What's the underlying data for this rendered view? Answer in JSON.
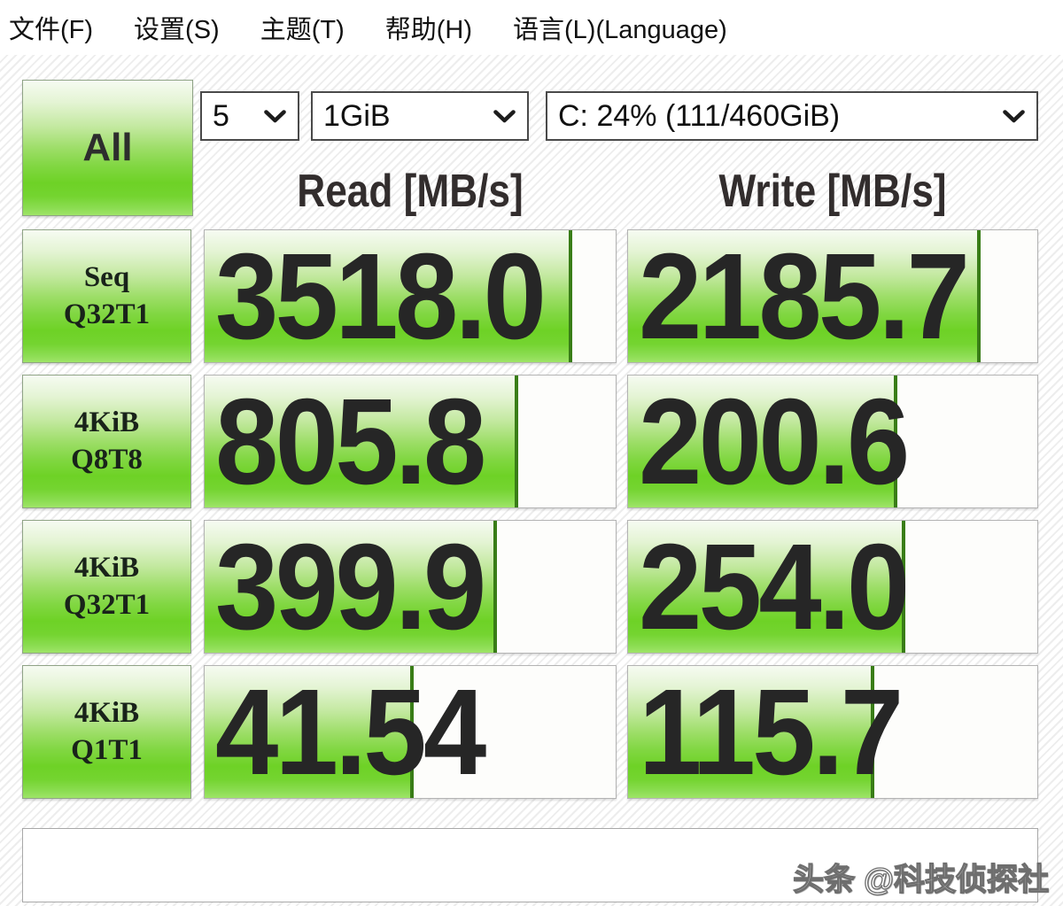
{
  "app": "CrystalDiskMark",
  "menu": {
    "items": [
      "文件(F)",
      "设置(S)",
      "主题(T)",
      "帮助(H)",
      "语言(L)(Language)"
    ]
  },
  "toolbar": {
    "all_button_label": "All",
    "test_count": {
      "value": "5"
    },
    "test_size": {
      "value": "1GiB"
    },
    "target_drive": {
      "value": "C: 24% (111/460GiB)"
    }
  },
  "columns": {
    "read": "Read [MB/s]",
    "write": "Write [MB/s]"
  },
  "results": [
    {
      "label_line1": "Seq",
      "label_line2": "Q32T1",
      "read": "3518.0",
      "write": "2185.7",
      "read_fill_pct": 89.5,
      "write_fill_pct": 86.2
    },
    {
      "label_line1": "4KiB",
      "label_line2": "Q8T8",
      "read": "805.8",
      "write": "200.6",
      "read_fill_pct": 76.2,
      "write_fill_pct": 65.7
    },
    {
      "label_line1": "4KiB",
      "label_line2": "Q32T1",
      "read": "399.9",
      "write": "254.0",
      "read_fill_pct": 71.2,
      "write_fill_pct": 67.7
    },
    {
      "label_line1": "4KiB",
      "label_line2": "Q1T1",
      "read": "41.54",
      "write": "115.7",
      "read_fill_pct": 50.9,
      "write_fill_pct": 60.1
    }
  ],
  "comment_bar": {
    "value": "",
    "placeholder": ""
  },
  "watermark": "头条 @科技侦探社",
  "colors": {
    "accent_green": "#6ed226",
    "fill_edge_green": "#397d17",
    "menu_text": "#111111",
    "value_text": "#262626",
    "stripe_gray": "#ededed"
  },
  "icons": {
    "dropdown_chevron": "chevron-down"
  }
}
